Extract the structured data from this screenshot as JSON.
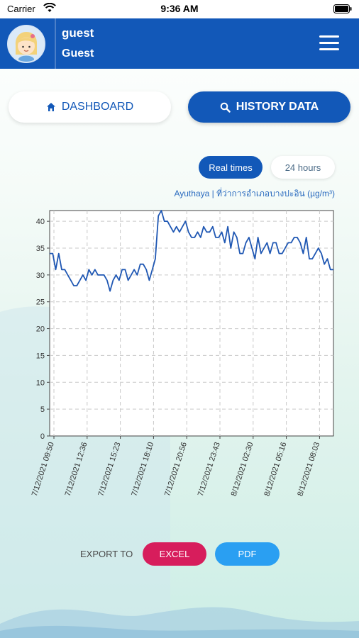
{
  "status_bar": {
    "carrier": "Carrier",
    "time": "9:36 AM"
  },
  "header": {
    "user_name": "guest",
    "user_role": "Guest",
    "avatar_icon": "avatar-icon",
    "menu_icon": "hamburger-menu-icon"
  },
  "nav": {
    "dashboard_label": "DASHBOARD",
    "history_label": "HISTORY DATA"
  },
  "range_toggle": {
    "realtime_label": "Real times",
    "hours_label": "24 hours"
  },
  "chart_caption": "Ayuthaya | ที่ว่าการอำเภอบางปะอิน (µg/m³)",
  "colors": {
    "brand": "#1258b8",
    "excel": "#d71d5c",
    "pdf": "#2a9ff2",
    "line": "#1f57b3"
  },
  "chart_data": {
    "type": "line",
    "title": "",
    "xlabel": "",
    "ylabel": "",
    "ylim": [
      0,
      42
    ],
    "yticks": [
      0,
      5,
      10,
      15,
      20,
      25,
      30,
      35,
      40
    ],
    "xticks": [
      "7/12/2021 09:50",
      "7/12/2021 12:36",
      "7/12/2021 15:23",
      "7/12/2021 18:10",
      "7/12/2021 20:56",
      "7/12/2021 23:43",
      "8/12/2021 02:30",
      "8/12/2021 05:16",
      "8/12/2021 08:03"
    ],
    "grid": true,
    "series": [
      {
        "values": [
          34,
          34,
          31,
          34,
          31,
          31,
          30,
          29,
          28,
          28,
          29,
          30,
          29,
          31,
          30,
          31,
          30,
          30,
          30,
          29,
          27,
          29,
          30,
          29,
          31,
          31,
          29,
          30,
          31,
          30,
          32,
          32,
          31,
          29,
          31,
          33,
          41,
          42,
          40,
          40,
          39,
          38,
          39,
          38,
          39,
          40,
          38,
          37,
          37,
          38,
          37,
          39,
          38,
          38,
          39,
          37,
          37,
          38,
          36,
          39,
          35,
          38,
          37,
          34,
          34,
          36,
          37,
          35,
          33,
          37,
          34,
          35,
          36,
          34,
          36,
          36,
          34,
          34,
          35,
          36,
          36,
          37,
          37,
          36,
          34,
          37,
          33,
          33,
          34,
          35,
          34,
          32,
          33,
          31,
          31
        ]
      }
    ]
  },
  "export": {
    "label": "EXPORT TO",
    "excel_label": "EXCEL",
    "pdf_label": "PDF"
  }
}
